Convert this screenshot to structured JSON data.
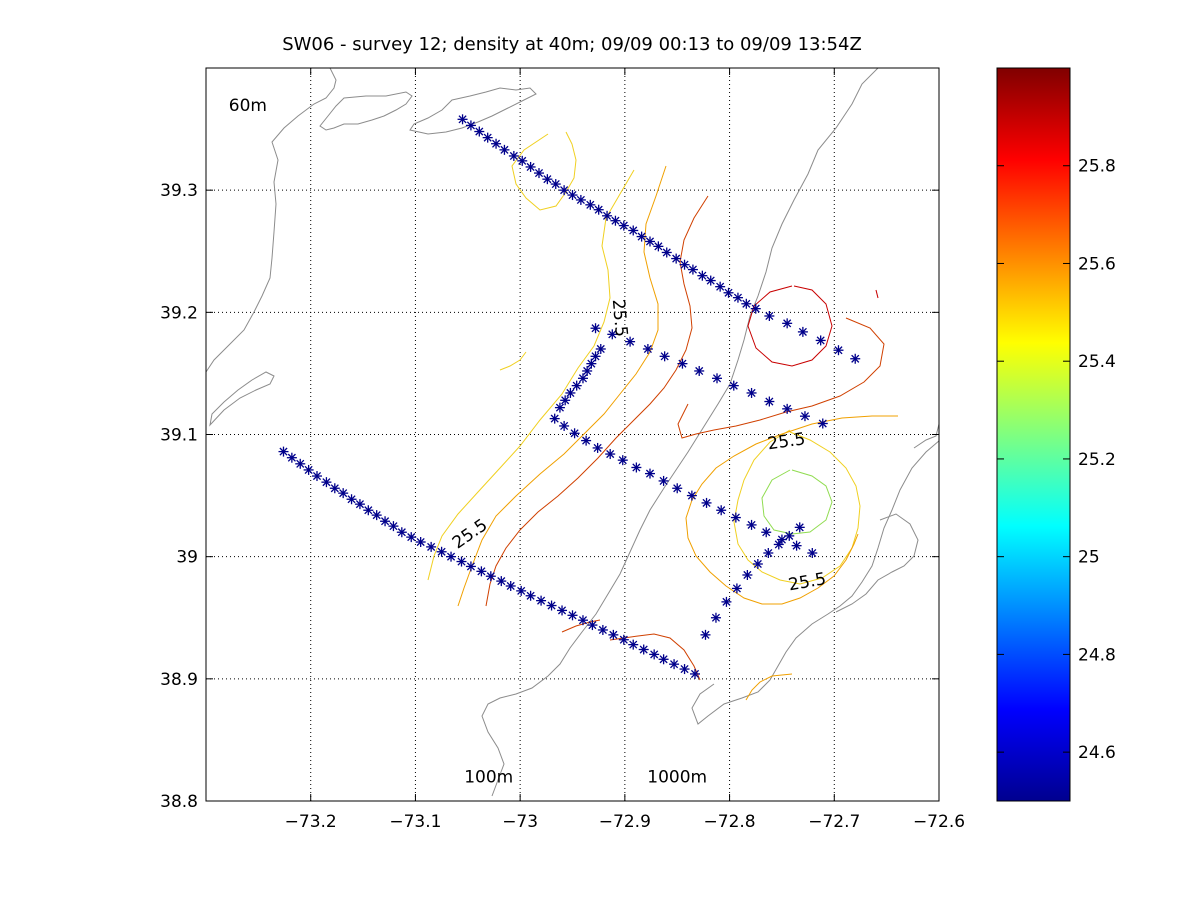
{
  "chart_data": {
    "type": "scatter",
    "title": "SW06 - survey 12; density at 40m; 09/09 00:13 to 09/09 13:54Z",
    "xlim": [
      -73.3,
      -72.6
    ],
    "ylim": [
      38.8,
      39.4
    ],
    "xticks": [
      -73.2,
      -73.1,
      -73.0,
      -72.9,
      -72.8,
      -72.7,
      -72.6
    ],
    "xtick_labels": [
      "−73.2",
      "−73.1",
      "−73",
      "−72.9",
      "−72.8",
      "−72.7",
      "−72.6"
    ],
    "yticks": [
      38.8,
      38.9,
      39.0,
      39.1,
      39.2,
      39.3
    ],
    "ytick_labels": [
      "38.8",
      "38.9",
      "39",
      "39.1",
      "39.2",
      "39.3"
    ],
    "grid": true,
    "annotations": [
      {
        "text": "60m",
        "x": -73.26,
        "y": 39.365
      },
      {
        "text": "100m",
        "x": -73.03,
        "y": 38.815
      },
      {
        "text": "1000m",
        "x": -72.85,
        "y": 38.815
      }
    ],
    "contour_labels": [
      {
        "text": "25.5",
        "x": -72.91,
        "y": 39.195,
        "rotate": 85
      },
      {
        "text": "25.5",
        "x": -72.745,
        "y": 39.09,
        "rotate": -8
      },
      {
        "text": "25.5",
        "x": -73.045,
        "y": 39.015,
        "rotate": -35
      },
      {
        "text": "25.5",
        "x": -72.725,
        "y": 38.975,
        "rotate": -10
      }
    ],
    "colorbar": {
      "min": 24.5,
      "max": 26.0,
      "ticks": [
        24.6,
        24.8,
        25.0,
        25.2,
        25.4,
        25.6,
        25.8
      ],
      "tick_labels": [
        "24.6",
        "24.8",
        "25",
        "25.2",
        "25.4",
        "25.6",
        "25.8"
      ],
      "colormap": "jet"
    },
    "series": [
      {
        "marker": "asterisk",
        "color": "#00008b",
        "x": [
          -73.055,
          -73.047,
          -73.039,
          -73.031,
          -73.023,
          -73.015,
          -73.006,
          -72.998,
          -72.99,
          -72.982,
          -72.974,
          -72.966,
          -72.958,
          -72.95,
          -72.942,
          -72.933,
          -72.925,
          -72.917,
          -72.909,
          -72.901,
          -72.892,
          -72.884,
          -72.876,
          -72.868,
          -72.86,
          -72.851,
          -72.843,
          -72.835,
          -72.826,
          -72.818,
          -72.809,
          -72.801,
          -72.792,
          -72.784,
          -72.775,
          -72.762,
          -72.745,
          -72.73,
          -72.713,
          -72.696,
          -72.68
        ],
        "y": [
          39.358,
          39.353,
          39.348,
          39.343,
          39.338,
          39.333,
          39.328,
          39.324,
          39.319,
          39.314,
          39.309,
          39.305,
          39.3,
          39.296,
          39.292,
          39.288,
          39.284,
          39.279,
          39.275,
          39.271,
          39.267,
          39.262,
          39.258,
          39.254,
          39.249,
          39.244,
          39.239,
          39.235,
          39.23,
          39.226,
          39.221,
          39.216,
          39.212,
          39.207,
          39.203,
          39.197,
          39.191,
          39.184,
          39.177,
          39.169,
          39.162
        ]
      },
      {
        "marker": "asterisk",
        "color": "#00008b",
        "x": [
          -72.928,
          -72.912,
          -72.895,
          -72.878,
          -72.862,
          -72.845,
          -72.829,
          -72.812,
          -72.796,
          -72.779,
          -72.762,
          -72.745,
          -72.728,
          -72.711
        ],
        "y": [
          39.187,
          39.182,
          39.176,
          39.17,
          39.164,
          39.158,
          39.152,
          39.146,
          39.14,
          39.134,
          39.127,
          39.121,
          39.115,
          39.109
        ]
      },
      {
        "marker": "asterisk",
        "color": "#00008b",
        "x": [
          -72.962,
          -72.957,
          -72.952,
          -72.946,
          -72.94,
          -72.936,
          -72.932,
          -72.928,
          -72.923
        ],
        "y": [
          39.122,
          39.128,
          39.134,
          39.14,
          39.146,
          39.152,
          39.158,
          39.164,
          39.17
        ]
      },
      {
        "marker": "asterisk",
        "color": "#00008b",
        "x": [
          -72.967,
          -72.958,
          -72.948,
          -72.937,
          -72.926,
          -72.914,
          -72.902,
          -72.889,
          -72.876,
          -72.863,
          -72.85,
          -72.836,
          -72.822,
          -72.808,
          -72.794,
          -72.779,
          -72.765,
          -72.75,
          -72.736,
          -72.721
        ],
        "y": [
          39.113,
          39.107,
          39.101,
          39.095,
          39.089,
          39.084,
          39.079,
          39.073,
          39.068,
          39.062,
          39.056,
          39.05,
          39.044,
          39.038,
          39.032,
          39.026,
          39.02,
          39.014,
          39.009,
          39.003
        ]
      },
      {
        "marker": "asterisk",
        "color": "#00008b",
        "x": [
          -73.226,
          -73.218,
          -73.21,
          -73.202,
          -73.194,
          -73.185,
          -73.177,
          -73.169,
          -73.161,
          -73.153,
          -73.145,
          -73.137,
          -73.129,
          -73.121,
          -73.113,
          -73.104,
          -73.095,
          -73.085,
          -73.075,
          -73.066,
          -73.056,
          -73.047,
          -73.037,
          -73.028,
          -73.018,
          -73.009,
          -72.999,
          -72.99,
          -72.98,
          -72.97,
          -72.96,
          -72.95,
          -72.94,
          -72.931,
          -72.921,
          -72.911,
          -72.901,
          -72.892,
          -72.882,
          -72.872,
          -72.863,
          -72.853,
          -72.843,
          -72.833,
          -72.823,
          -72.813,
          -72.803,
          -72.793,
          -72.783,
          -72.773,
          -72.763,
          -72.753,
          -72.743,
          -72.733
        ],
        "y": [
          39.086,
          39.081,
          39.076,
          39.071,
          39.066,
          39.061,
          39.056,
          39.052,
          39.047,
          39.043,
          39.038,
          39.034,
          39.029,
          39.025,
          39.02,
          39.016,
          39.012,
          39.008,
          39.004,
          39.0,
          38.996,
          38.992,
          38.988,
          38.984,
          38.98,
          38.976,
          38.972,
          38.968,
          38.964,
          38.96,
          38.956,
          38.952,
          38.948,
          38.944,
          38.94,
          38.936,
          38.932,
          38.928,
          38.924,
          38.92,
          38.916,
          38.912,
          38.908,
          38.904,
          38.936,
          38.95,
          38.963,
          38.974,
          38.985,
          38.994,
          39.003,
          39.01,
          39.017,
          39.024
        ]
      }
    ]
  }
}
